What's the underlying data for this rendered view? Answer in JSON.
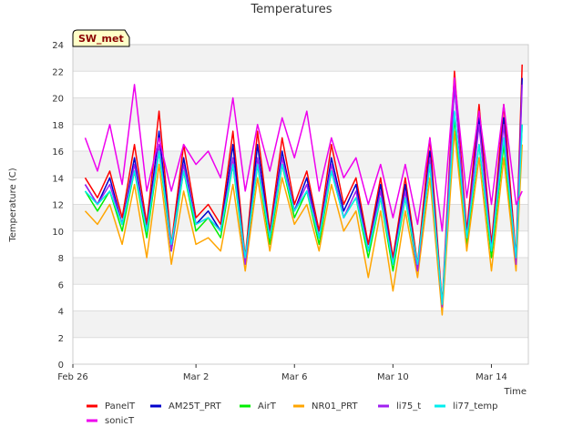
{
  "chart_data": {
    "type": "line",
    "title": "Temperatures",
    "xlabel": "Time",
    "ylabel": "Temperature (C)",
    "badge": "SW_met",
    "x_ticks": [
      "Feb 26",
      "Mar 2",
      "Mar 6",
      "Mar 10",
      "Mar 14"
    ],
    "xlim": [
      "Feb 26",
      "Mar 15 12:00"
    ],
    "ylim": [
      0,
      24
    ],
    "y_ticks": [
      0,
      2,
      4,
      6,
      8,
      10,
      12,
      14,
      16,
      18,
      20,
      22,
      24
    ],
    "grid": "horizontal bands",
    "legend_position": "bottom",
    "x": [
      "Feb 26 12:00",
      "Feb 27 00:00",
      "Feb 27 12:00",
      "Feb 28 00:00",
      "Feb 28 12:00",
      "Feb 29 00:00",
      "Feb 29 12:00",
      "Mar 1 00:00",
      "Mar 1 12:00",
      "Mar 2 00:00",
      "Mar 2 12:00",
      "Mar 3 00:00",
      "Mar 3 12:00",
      "Mar 4 00:00",
      "Mar 4 12:00",
      "Mar 5 00:00",
      "Mar 5 12:00",
      "Mar 6 00:00",
      "Mar 6 12:00",
      "Mar 7 00:00",
      "Mar 7 12:00",
      "Mar 8 00:00",
      "Mar 8 12:00",
      "Mar 9 00:00",
      "Mar 9 12:00",
      "Mar 10 00:00",
      "Mar 10 12:00",
      "Mar 11 00:00",
      "Mar 11 12:00",
      "Mar 12 00:00",
      "Mar 12 12:00",
      "Mar 13 00:00",
      "Mar 13 12:00",
      "Mar 14 00:00",
      "Mar 14 12:00",
      "Mar 15 00:00",
      "Mar 15 06:00"
    ],
    "series": [
      {
        "name": "PanelT",
        "color": "#ff0000",
        "values": [
          14.0,
          12.5,
          14.5,
          11.0,
          16.5,
          10.5,
          19.0,
          9.0,
          16.5,
          11.0,
          12.0,
          10.5,
          17.5,
          8.0,
          17.5,
          10.0,
          17.0,
          12.0,
          14.5,
          10.0,
          16.5,
          12.0,
          14.0,
          9.0,
          14.0,
          8.0,
          14.0,
          7.5,
          17.0,
          4.5,
          22.0,
          10.0,
          19.5,
          9.0,
          19.5,
          8.0,
          22.5
        ]
      },
      {
        "name": "AM25T_PRT",
        "color": "#0000cc",
        "values": [
          13.5,
          12.0,
          14.0,
          10.5,
          15.5,
          10.0,
          17.5,
          8.5,
          15.5,
          10.5,
          11.5,
          10.0,
          16.5,
          7.5,
          16.5,
          9.5,
          16.0,
          11.5,
          14.0,
          9.5,
          15.5,
          11.5,
          13.5,
          8.5,
          13.5,
          7.5,
          13.5,
          7.0,
          16.0,
          4.2,
          21.0,
          9.5,
          18.5,
          8.5,
          18.5,
          7.5,
          21.5
        ]
      },
      {
        "name": "AirT",
        "color": "#00ee00",
        "values": [
          13.0,
          11.5,
          13.0,
          10.0,
          14.5,
          9.5,
          16.0,
          8.5,
          14.5,
          10.0,
          11.0,
          9.5,
          15.0,
          7.5,
          15.0,
          9.0,
          15.0,
          11.0,
          13.0,
          9.0,
          14.5,
          11.0,
          12.5,
          8.0,
          12.5,
          7.0,
          12.5,
          7.0,
          15.0,
          4.0,
          18.5,
          9.0,
          16.5,
          8.0,
          16.5,
          7.5,
          18.0
        ]
      },
      {
        "name": "NR01_PRT",
        "color": "#ffa500",
        "values": [
          11.5,
          10.5,
          12.0,
          9.0,
          13.5,
          8.0,
          15.0,
          7.5,
          13.0,
          9.0,
          9.5,
          8.5,
          13.5,
          7.0,
          14.0,
          8.5,
          14.0,
          10.5,
          12.0,
          8.5,
          13.5,
          10.0,
          11.5,
          6.5,
          11.5,
          5.5,
          11.5,
          6.5,
          14.0,
          3.7,
          17.5,
          8.5,
          15.5,
          7.0,
          15.5,
          7.0,
          16.5
        ]
      },
      {
        "name": "li75_t",
        "color": "#a020f0",
        "values": [
          13.5,
          12.0,
          13.5,
          10.5,
          15.0,
          10.0,
          16.5,
          8.5,
          15.0,
          10.5,
          11.0,
          10.0,
          15.5,
          7.5,
          15.5,
          9.5,
          15.5,
          11.5,
          13.5,
          9.5,
          15.0,
          11.0,
          13.0,
          8.5,
          13.0,
          7.5,
          13.0,
          7.0,
          15.5,
          4.3,
          21.0,
          9.5,
          18.0,
          8.5,
          18.0,
          7.5,
          21.0
        ]
      },
      {
        "name": "li77_temp",
        "color": "#00eeee",
        "values": [
          13.0,
          12.0,
          13.0,
          10.5,
          14.5,
          10.0,
          16.0,
          9.0,
          14.5,
          10.5,
          11.0,
          10.0,
          15.0,
          8.0,
          15.0,
          9.5,
          15.0,
          11.5,
          13.0,
          9.5,
          14.5,
          11.0,
          12.5,
          8.5,
          12.5,
          7.5,
          12.5,
          7.5,
          15.0,
          4.5,
          19.0,
          9.5,
          16.5,
          8.5,
          17.0,
          8.0,
          18.0
        ]
      },
      {
        "name": "sonicT",
        "color": "#ee00ee",
        "values": [
          17.0,
          14.5,
          18.0,
          13.5,
          21.0,
          13.0,
          17.0,
          13.0,
          16.5,
          15.0,
          16.0,
          14.0,
          20.0,
          13.0,
          18.0,
          14.5,
          18.5,
          15.5,
          19.0,
          13.0,
          17.0,
          14.0,
          15.5,
          12.0,
          15.0,
          11.0,
          15.0,
          10.5,
          17.0,
          10.0,
          21.5,
          12.5,
          19.0,
          12.0,
          19.5,
          12.0,
          13.0
        ]
      }
    ]
  }
}
